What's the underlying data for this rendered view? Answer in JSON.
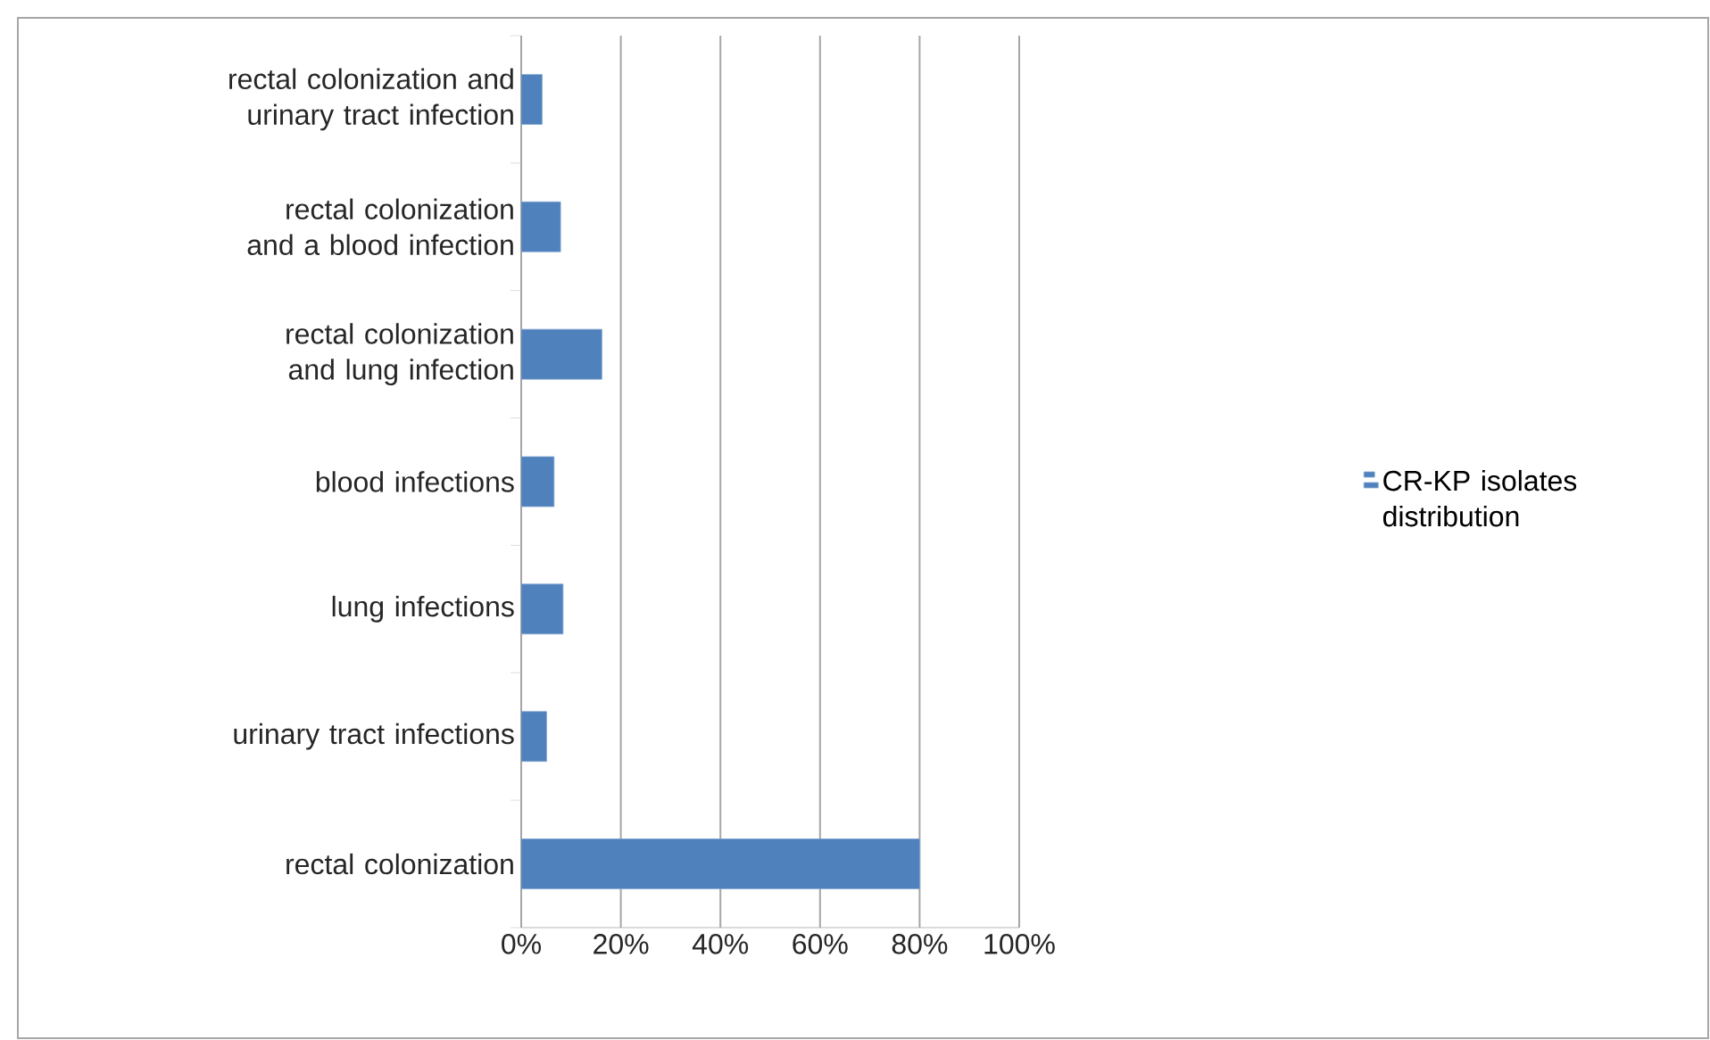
{
  "chart_data": {
    "type": "bar",
    "orientation": "horizontal",
    "categories": [
      "rectal colonization and urinary tract infection",
      "rectal colonization and a blood infection",
      "rectal colonization and lung infection",
      "blood infections",
      "lung infections",
      "urinary tract infections",
      "rectal colonization"
    ],
    "series": [
      {
        "name": "CR-KP isolates distribution",
        "color": "#4f81bd",
        "values": [
          4.2,
          7.9,
          16.2,
          6.6,
          8.4,
          5.1,
          80
        ]
      }
    ],
    "xlim": [
      0,
      100
    ],
    "xticks": [
      {
        "value": 0,
        "label": "0%"
      },
      {
        "value": 20,
        "label": "20%"
      },
      {
        "value": 40,
        "label": "40%"
      },
      {
        "value": 60,
        "label": "60%"
      },
      {
        "value": 80,
        "label": "80%"
      },
      {
        "value": 100,
        "label": "100%"
      }
    ],
    "grid": "x",
    "legend": "right"
  }
}
